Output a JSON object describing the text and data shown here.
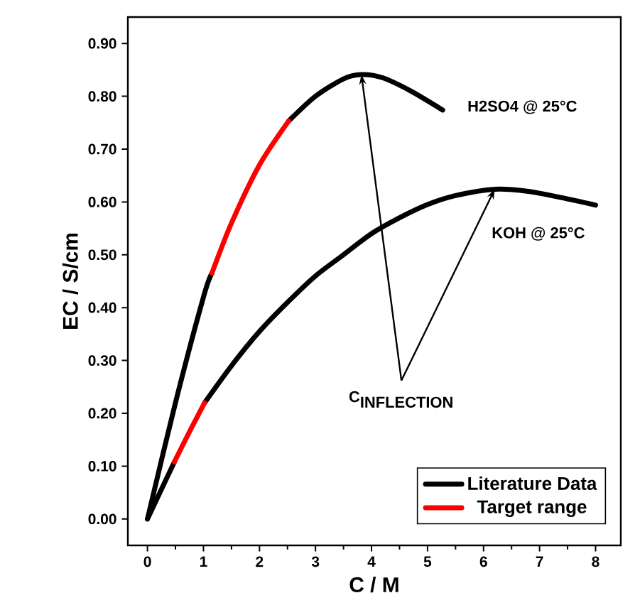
{
  "chart_data": {
    "type": "line",
    "xlabel": "C  /  M",
    "ylabel": "EC  /  S/cm",
    "xlim": [
      -0.35,
      8.45
    ],
    "ylim": [
      -0.05,
      0.95
    ],
    "xticks": [
      0,
      1,
      2,
      3,
      4,
      5,
      6,
      7,
      8
    ],
    "yticks": [
      {
        "value": 0,
        "label": "0.00"
      },
      {
        "value": 0.1,
        "label": "0.10"
      },
      {
        "value": 0.2,
        "label": "0.20"
      },
      {
        "value": 0.3,
        "label": "0.30"
      },
      {
        "value": 0.4,
        "label": "0.40"
      },
      {
        "value": 0.5,
        "label": "0.50"
      },
      {
        "value": 0.6,
        "label": "0.60"
      },
      {
        "value": 0.7,
        "label": "0.70"
      },
      {
        "value": 0.8,
        "label": "0.80"
      },
      {
        "value": 0.9,
        "label": "0.90"
      }
    ],
    "series": [
      {
        "name": "Literature Data",
        "color": "#000000",
        "x": [
          0,
          0.5,
          1.0,
          1.15,
          1.5,
          2.0,
          2.52,
          3.0,
          3.5,
          3.82,
          4.2,
          4.7,
          5.27
        ],
        "values": [
          0,
          0.22,
          0.42,
          0.465,
          null,
          null,
          0.753,
          0.8,
          0.833,
          0.841,
          0.835,
          0.81,
          0.774
        ]
      },
      {
        "color": "#000000",
        "x": [
          0,
          0.48,
          0.75,
          1.02,
          1.5,
          2,
          2.5,
          3,
          3.5,
          4,
          4.5,
          5,
          5.5,
          6.2,
          6.8,
          7.4,
          8.0
        ],
        "values": [
          0,
          0.108,
          null,
          0.22,
          0.29,
          0.355,
          0.41,
          0.46,
          0.5,
          0.54,
          0.57,
          0.595,
          0.612,
          0.624,
          0.62,
          0.608,
          0.594
        ]
      },
      {
        "name": "Target range",
        "color": "#ff0000",
        "x": [
          1.15,
          1.5,
          2.0,
          2.52
        ],
        "values": [
          0.465,
          0.56,
          0.67,
          0.753
        ]
      },
      {
        "color": "#ff0000",
        "x": [
          0.48,
          0.75,
          1.02
        ],
        "values": [
          0.108,
          0.165,
          0.22
        ]
      }
    ],
    "annotations": [
      {
        "text": "H2SO4 @ 25°C",
        "x": 5.27,
        "y": 0.774
      },
      {
        "text": "KOH @ 25°C",
        "x": 8.0,
        "y": 0.594
      },
      "\\textbf{C}_{\\textbf{INFLECTION}}"
    ],
    "legend": "bottom right",
    "grid": false,
    "marker": "none",
    "line_style": "solid"
  }
}
